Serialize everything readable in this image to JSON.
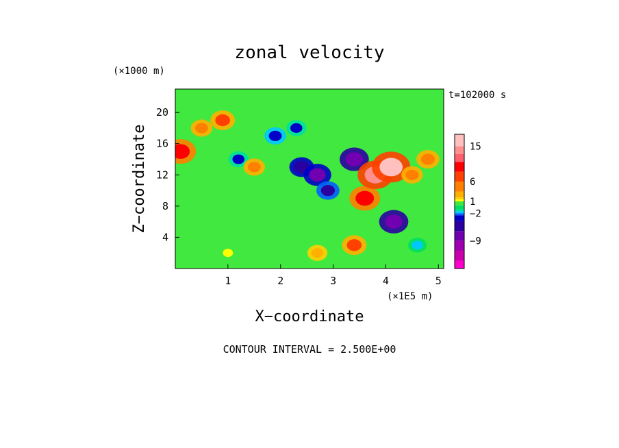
{
  "chart_data": {
    "type": "heatmap",
    "title": "zonal velocity",
    "xlabel": "X−coordinate",
    "ylabel": "Z−coordinate",
    "x_unit": "(×1E5 m)",
    "y_unit": "(×1000 m)",
    "time_label": "t=102000 s",
    "footer": "CONTOUR INTERVAL = 2.500E+00",
    "xlim": [
      0,
      5.1
    ],
    "ylim": [
      0,
      23
    ],
    "x_ticks": [
      "1",
      "2",
      "3",
      "4",
      "5"
    ],
    "y_ticks": [
      "4",
      "8",
      "12",
      "16",
      "20"
    ],
    "colorbar": {
      "levels": [
        -16,
        -14,
        -11.5,
        -9,
        -6.5,
        -4,
        -2.5,
        -2,
        -1.5,
        -1,
        0,
        1,
        1.5,
        2,
        3.5,
        6,
        8.5,
        11,
        13,
        15,
        18
      ],
      "colors": [
        "#ff00cc",
        "#cc00aa",
        "#a000b0",
        "#7000b0",
        "#2a00a0",
        "#0000c8",
        "#0060ff",
        "#00c8ff",
        "#00e0a0",
        "#00e060",
        "#40e840",
        "#ffff00",
        "#ffd000",
        "#ffb000",
        "#ff8000",
        "#ff4000",
        "#ff0000",
        "#ff6070",
        "#ff9090",
        "#ffc0c0"
      ],
      "labels": [
        "15",
        "6",
        "1",
        "−2",
        "−9"
      ],
      "label_values": [
        15,
        6,
        1,
        -2,
        -9
      ]
    },
    "features": [
      {
        "x": 0.1,
        "z": 15,
        "u": 10
      },
      {
        "x": 0.5,
        "z": 18,
        "u": 4
      },
      {
        "x": 0.9,
        "z": 19,
        "u": 6
      },
      {
        "x": 1.2,
        "z": 14,
        "u": -3
      },
      {
        "x": 1.5,
        "z": 13,
        "u": 4
      },
      {
        "x": 1.9,
        "z": 17,
        "u": -4
      },
      {
        "x": 2.3,
        "z": 18,
        "u": -3
      },
      {
        "x": 2.4,
        "z": 13,
        "u": -6
      },
      {
        "x": 2.7,
        "z": 12,
        "u": -8
      },
      {
        "x": 2.9,
        "z": 10,
        "u": -5
      },
      {
        "x": 3.4,
        "z": 14,
        "u": -9
      },
      {
        "x": 3.6,
        "z": 9,
        "u": 10
      },
      {
        "x": 3.8,
        "z": 12,
        "u": 13
      },
      {
        "x": 4.1,
        "z": 13,
        "u": 15
      },
      {
        "x": 4.15,
        "z": 6,
        "u": -9
      },
      {
        "x": 4.5,
        "z": 12,
        "u": 4
      },
      {
        "x": 4.8,
        "z": 14,
        "u": 5
      },
      {
        "x": 2.7,
        "z": 2,
        "u": 3
      },
      {
        "x": 4.6,
        "z": 3,
        "u": -2
      },
      {
        "x": 1.0,
        "z": 2,
        "u": 1
      },
      {
        "x": 3.4,
        "z": 3,
        "u": 6
      }
    ]
  }
}
